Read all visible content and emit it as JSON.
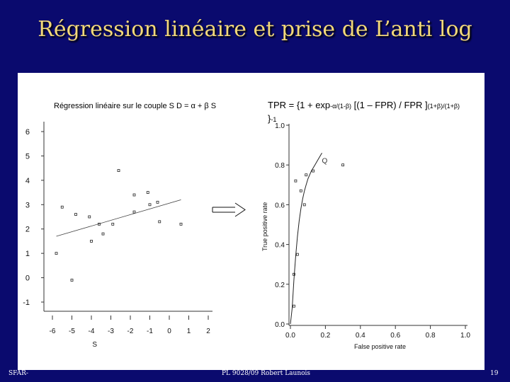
{
  "slide": {
    "title": "Régression linéaire et prise de  L’anti log",
    "footer_left": "SFAR-",
    "footer_center": "PL 9028/09 Robert Launois",
    "footer_right": "19"
  },
  "left_plot": {
    "caption": "Régression linéaire sur le couple S D = α + β S"
  },
  "right_plot": {
    "formula_main": "TPR = {1 + exp",
    "formula_sub1": "-α/(1-β)",
    "formula_mid": " [(1 – FPR) / FPR ]",
    "formula_sub2": "(1+β)/(1+β)",
    "formula_end": "}",
    "formula_sup": "-1",
    "point_label": "Q"
  },
  "chart_data": [
    {
      "type": "scatter",
      "title": "Régression linéaire sur le couple S D = α + β S",
      "xlabel": "S",
      "ylabel": "",
      "xlim": [
        -6,
        2
      ],
      "ylim": [
        -1,
        6
      ],
      "xticks": [
        "-6",
        "-5",
        "-4",
        "-3",
        "-2",
        "-1",
        "0",
        "1",
        "2"
      ],
      "yticks": [
        "-1",
        "0",
        "1",
        "2",
        "3",
        "4",
        "5",
        "6"
      ],
      "points": [
        {
          "x": -5.8,
          "y": 1.0
        },
        {
          "x": -5.5,
          "y": 2.9
        },
        {
          "x": -5.0,
          "y": -0.1
        },
        {
          "x": -4.8,
          "y": 2.6
        },
        {
          "x": -4.1,
          "y": 2.5
        },
        {
          "x": -4.0,
          "y": 1.5
        },
        {
          "x": -3.6,
          "y": 2.2
        },
        {
          "x": -3.4,
          "y": 1.8
        },
        {
          "x": -2.9,
          "y": 2.2
        },
        {
          "x": -2.6,
          "y": 4.4
        },
        {
          "x": -1.8,
          "y": 3.4
        },
        {
          "x": -1.8,
          "y": 2.7
        },
        {
          "x": -1.1,
          "y": 3.5
        },
        {
          "x": -1.0,
          "y": 3.0
        },
        {
          "x": -0.6,
          "y": 3.1
        },
        {
          "x": -0.5,
          "y": 2.3
        },
        {
          "x": 0.6,
          "y": 2.2
        }
      ],
      "regression_line": {
        "x": [
          -5.8,
          0.6
        ],
        "y": [
          1.7,
          3.2
        ]
      },
      "grid": false
    },
    {
      "type": "line",
      "title": "",
      "xlabel": "False positive rate",
      "ylabel": "True positive rate",
      "xlim": [
        0,
        1
      ],
      "ylim": [
        0,
        1
      ],
      "xticks": [
        "0.0",
        "0.2",
        "0.4",
        "0.6",
        "0.8",
        "1.0"
      ],
      "yticks": [
        "0.0",
        "0.2",
        "0.4",
        "0.6",
        "0.8",
        "1.0"
      ],
      "curve": {
        "x": [
          0.0,
          0.01,
          0.02,
          0.03,
          0.04,
          0.05,
          0.06,
          0.07,
          0.08,
          0.09,
          0.1,
          0.12,
          0.14,
          0.16,
          0.18
        ],
        "y": [
          0.0,
          0.08,
          0.22,
          0.34,
          0.44,
          0.52,
          0.58,
          0.63,
          0.67,
          0.7,
          0.73,
          0.77,
          0.8,
          0.83,
          0.86
        ]
      },
      "points": [
        {
          "x": 0.02,
          "y": 0.09
        },
        {
          "x": 0.02,
          "y": 0.25
        },
        {
          "x": 0.03,
          "y": 0.72
        },
        {
          "x": 0.04,
          "y": 0.35
        },
        {
          "x": 0.06,
          "y": 0.67
        },
        {
          "x": 0.08,
          "y": 0.6
        },
        {
          "x": 0.09,
          "y": 0.75
        },
        {
          "x": 0.13,
          "y": 0.77
        },
        {
          "x": 0.3,
          "y": 0.8
        }
      ],
      "grid": false
    }
  ]
}
